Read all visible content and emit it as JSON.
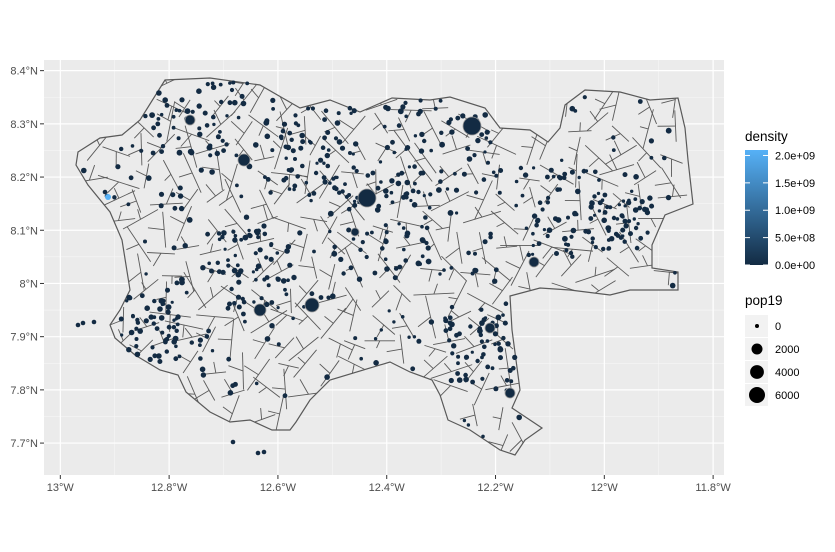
{
  "chart_data": {
    "type": "map",
    "x_ticks": [
      "13°W",
      "12.8°W",
      "12.6°W",
      "12.4°W",
      "12.2°W",
      "12°W",
      "11.8°W"
    ],
    "x_values": [
      -13.0,
      -12.8,
      -12.6,
      -12.4,
      -12.2,
      -12.0,
      -11.8
    ],
    "y_ticks": [
      "8.4°N",
      "8.3°N",
      "8.2°N",
      "8.1°N",
      "8°N",
      "7.9°N",
      "7.8°N",
      "7.7°N"
    ],
    "y_values": [
      8.4,
      8.3,
      8.2,
      8.1,
      8.0,
      7.9,
      7.8,
      7.7
    ],
    "xlim": [
      -13.03,
      -11.78
    ],
    "ylim": [
      7.64,
      8.42
    ],
    "grid": true,
    "legend_placement": "right",
    "legend": {
      "density": {
        "title": "density",
        "labels": [
          "2.0e+09",
          "1.5e+09",
          "1.0e+09",
          "5.0e+08",
          "0.0e+00"
        ],
        "values": [
          2000000000.0,
          1500000000.0,
          1000000000.0,
          500000000.0,
          0
        ],
        "color_low": "#132B43",
        "color_high": "#56B1F7"
      },
      "pop19": {
        "title": "pop19",
        "labels": [
          "0",
          "2000",
          "4000",
          "6000"
        ],
        "values": [
          0,
          2000,
          4000,
          6000
        ]
      }
    },
    "polygon_fill": "#ebebeb",
    "polygon_stroke": "#595959",
    "point_color": "#132B43",
    "panel_background": "#ebebeb",
    "gridline_color": "#ffffff"
  }
}
